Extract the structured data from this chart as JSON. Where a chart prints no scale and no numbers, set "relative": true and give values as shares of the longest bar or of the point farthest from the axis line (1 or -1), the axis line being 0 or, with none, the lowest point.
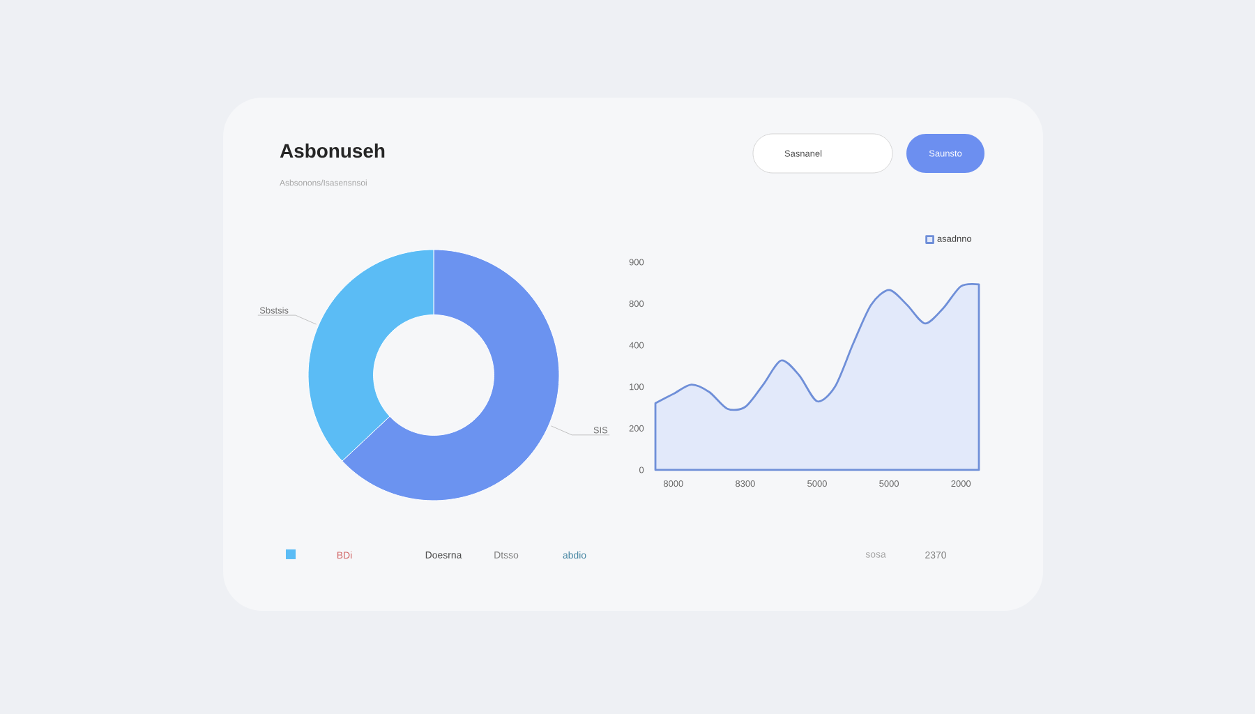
{
  "chart_data": [
    {
      "type": "other",
      "title": "Asbonuseh",
      "subtitle": "Asbsonons/Isasensnsoi",
      "annotations": [
        "Sasnanel",
        "Saunsto",
        "BDi",
        "Doesrna",
        "Dtsso",
        "abdio",
        "sosa",
        "2370"
      ]
    },
    {
      "type": "donut",
      "categories": [
        "SIS",
        "Sbstsis"
      ],
      "values": [
        63,
        37
      ],
      "colors": [
        "#6b93f0",
        "#5bbcf5"
      ]
    },
    {
      "type": "area",
      "relative": true,
      "categories": [
        null,
        "8000",
        null,
        null,
        null,
        "8300",
        null,
        null,
        null,
        "5000",
        null,
        null,
        null,
        "5000",
        null,
        null,
        null,
        "2000",
        null
      ],
      "annotations": [
        "0",
        "200",
        "100",
        "400",
        "800",
        "900"
      ],
      "legend": "top right",
      "series": [
        {
          "name": "asadnno",
          "color": "#6f8fd8",
          "values": [
            0.36,
            0.41,
            0.46,
            0.42,
            0.33,
            0.34,
            0.46,
            0.59,
            0.51,
            0.37,
            0.45,
            0.68,
            0.89,
            0.97,
            0.89,
            0.79,
            0.87,
            0.99,
            1.0
          ]
        }
      ]
    }
  ]
}
